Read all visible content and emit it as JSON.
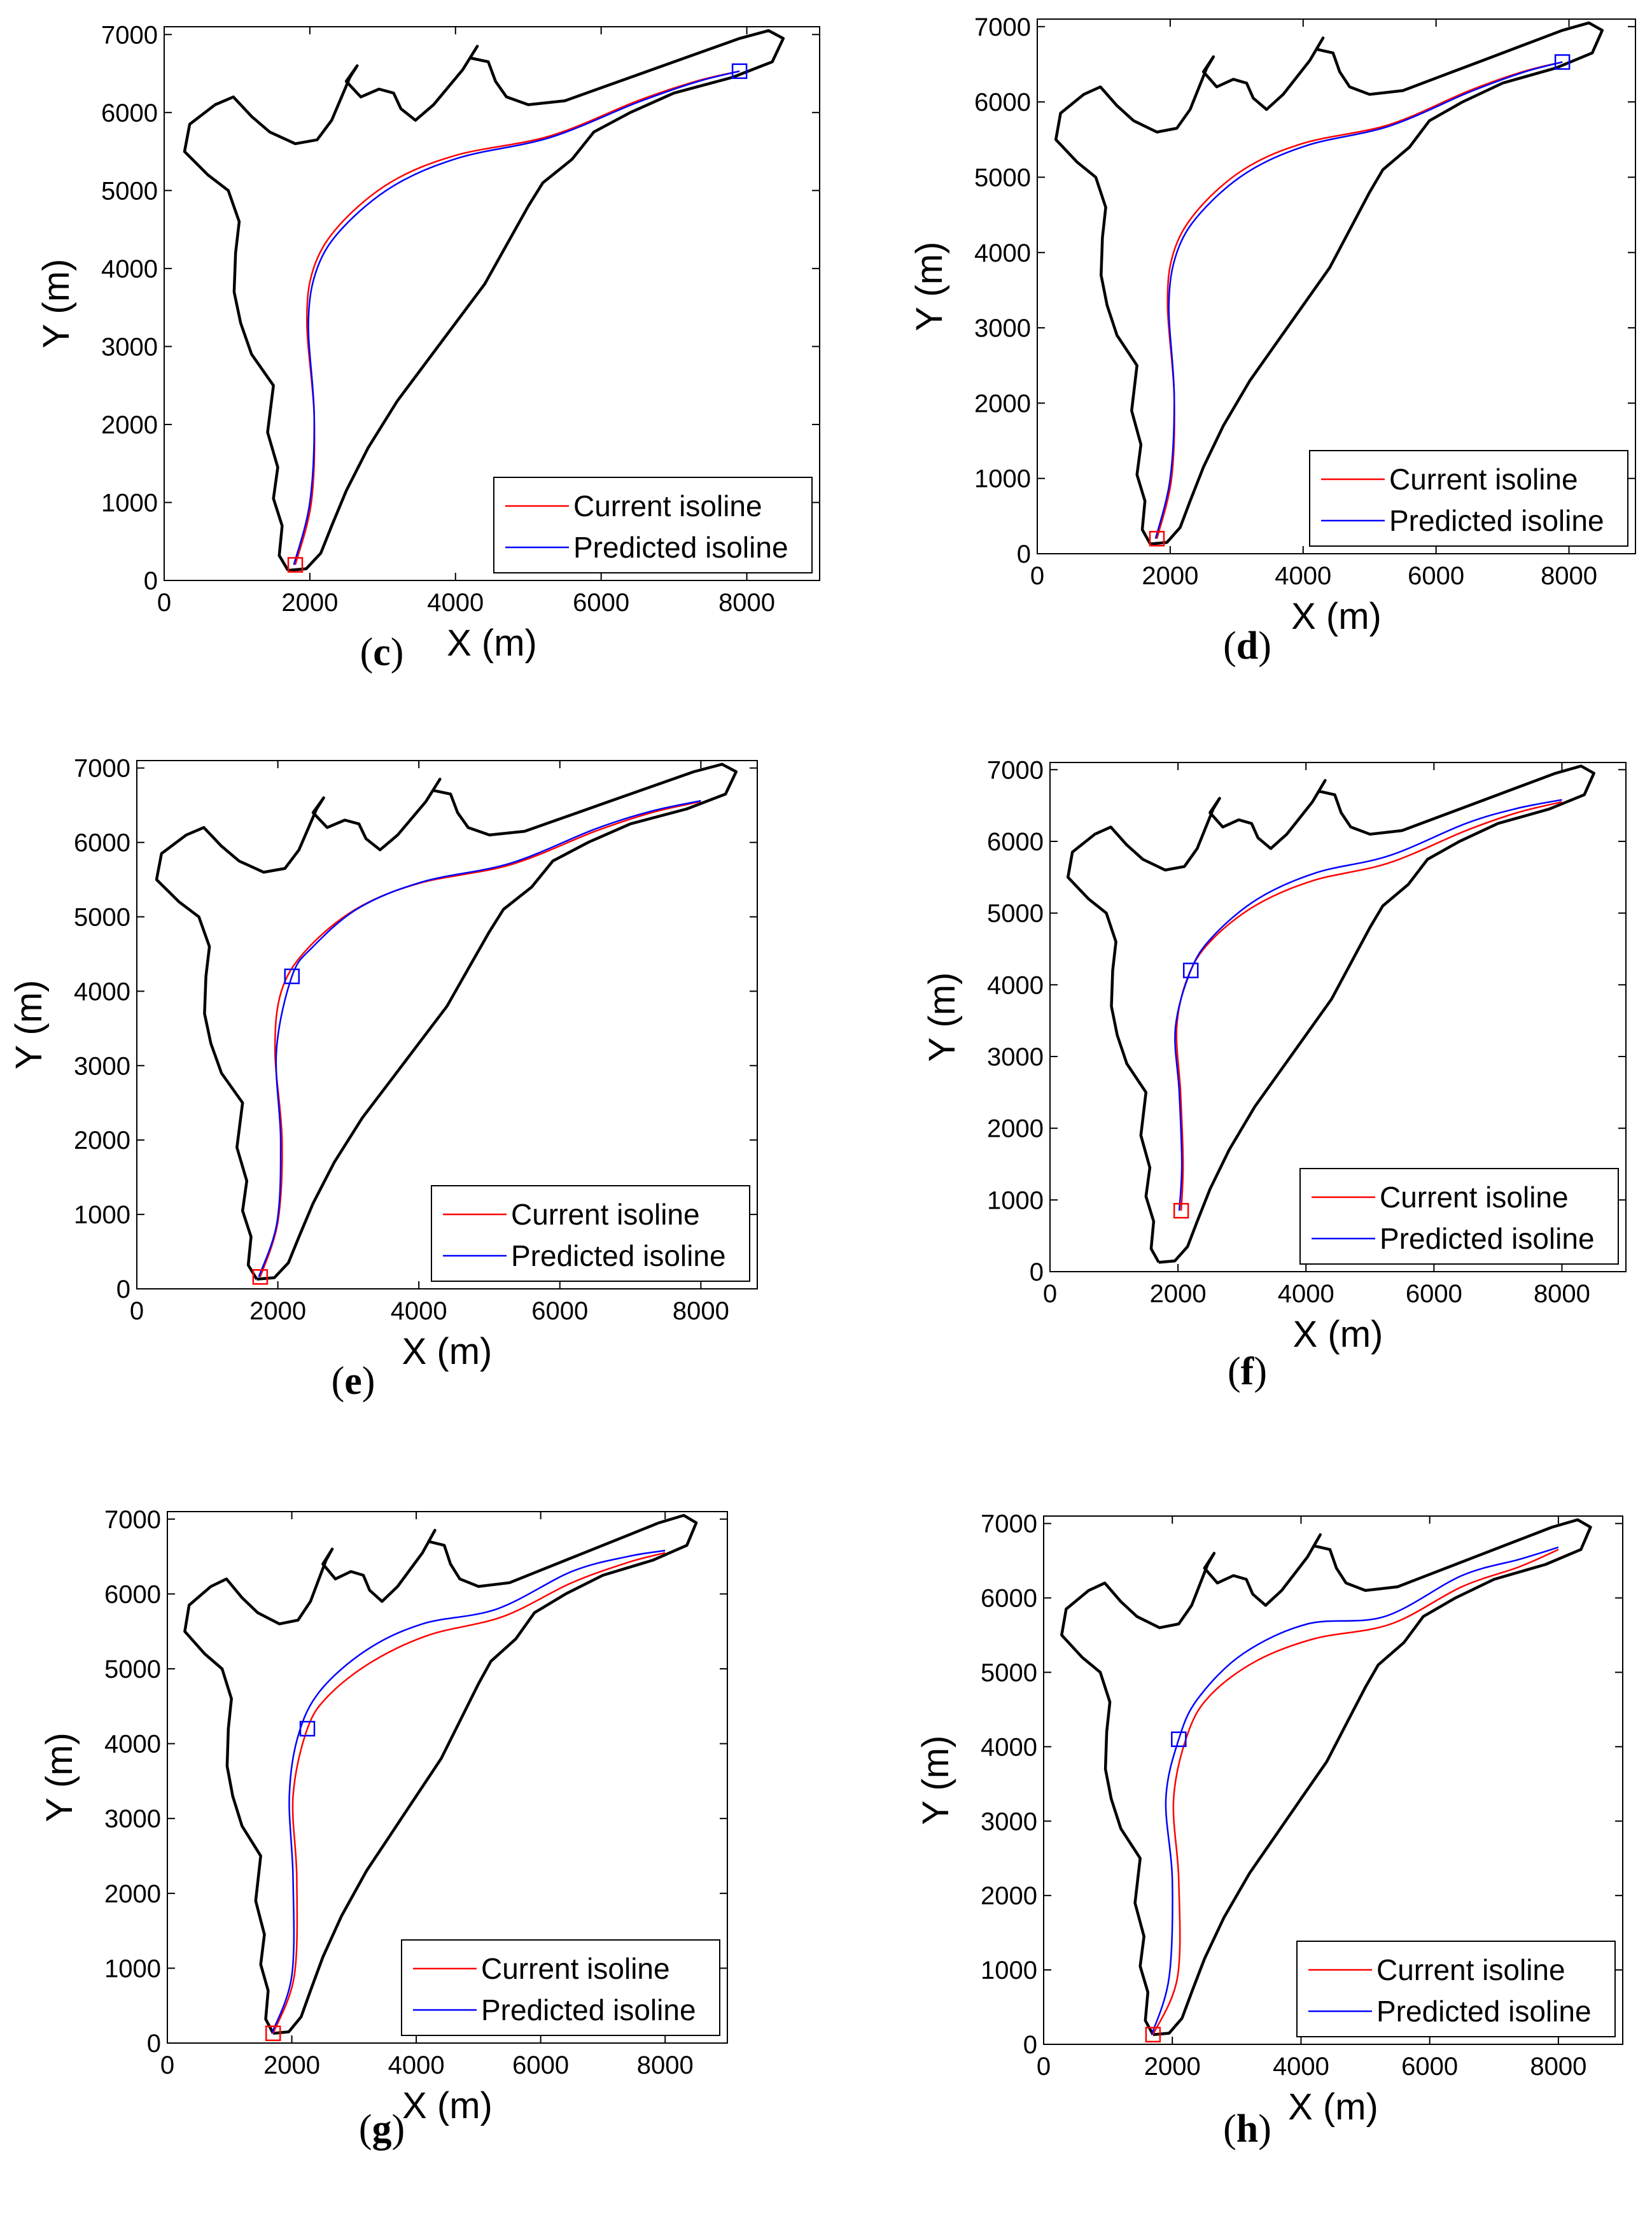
{
  "chart_data": [
    {
      "id": "c",
      "type": "line",
      "caption": "c",
      "xlabel": "X (m)",
      "ylabel": "Y (m)",
      "xlim": [
        0,
        9000
      ],
      "ylim": [
        0,
        7100
      ],
      "xticks": [
        0,
        2000,
        4000,
        6000,
        8000
      ],
      "yticks": [
        0,
        1000,
        2000,
        3000,
        4000,
        5000,
        6000,
        7000
      ],
      "legend": [
        "Current isoline",
        "Predicted isoline"
      ],
      "legend_position": "bottom-right",
      "marker_current": [
        1800,
        200
      ],
      "marker_predicted": [
        7900,
        6530
      ],
      "current_isoline": [
        [
          1800,
          200
        ],
        [
          2020,
          1000
        ],
        [
          2060,
          2100
        ],
        [
          1960,
          3300
        ],
        [
          2050,
          4000
        ],
        [
          2400,
          4550
        ],
        [
          3100,
          5100
        ],
        [
          4000,
          5450
        ],
        [
          5300,
          5700
        ],
        [
          6500,
          6150
        ],
        [
          7300,
          6400
        ],
        [
          7900,
          6530
        ]
      ],
      "predicted_isoline": [
        [
          1780,
          200
        ],
        [
          2000,
          1000
        ],
        [
          2060,
          2100
        ],
        [
          1980,
          3300
        ],
        [
          2100,
          4000
        ],
        [
          2450,
          4520
        ],
        [
          3150,
          5060
        ],
        [
          4050,
          5420
        ],
        [
          5300,
          5680
        ],
        [
          6500,
          6130
        ],
        [
          7300,
          6390
        ],
        [
          7900,
          6530
        ]
      ]
    },
    {
      "id": "d",
      "type": "line",
      "caption": "d",
      "xlabel": "X (m)",
      "ylabel": "Y (m)",
      "xlim": [
        0,
        9000
      ],
      "ylim": [
        0,
        7100
      ],
      "xticks": [
        0,
        2000,
        4000,
        6000,
        8000
      ],
      "yticks": [
        0,
        1000,
        2000,
        3000,
        4000,
        5000,
        6000,
        7000
      ],
      "legend": [
        "Current isoline",
        "Predicted isoline"
      ],
      "legend_position": "bottom-right",
      "marker_current": [
        1800,
        200
      ],
      "marker_predicted": [
        7900,
        6530
      ],
      "current_isoline": [
        [
          1800,
          200
        ],
        [
          2020,
          1000
        ],
        [
          2060,
          2100
        ],
        [
          1960,
          3300
        ],
        [
          2050,
          4000
        ],
        [
          2400,
          4550
        ],
        [
          3100,
          5100
        ],
        [
          4000,
          5450
        ],
        [
          5300,
          5700
        ],
        [
          6500,
          6150
        ],
        [
          7300,
          6400
        ],
        [
          7900,
          6530
        ]
      ],
      "predicted_isoline": [
        [
          1780,
          200
        ],
        [
          2000,
          1000
        ],
        [
          2060,
          2100
        ],
        [
          1980,
          3300
        ],
        [
          2100,
          4000
        ],
        [
          2450,
          4520
        ],
        [
          3150,
          5060
        ],
        [
          4050,
          5420
        ],
        [
          5300,
          5680
        ],
        [
          6500,
          6130
        ],
        [
          7300,
          6390
        ],
        [
          7900,
          6530
        ]
      ]
    },
    {
      "id": "e",
      "type": "line",
      "caption": "e",
      "xlabel": "X (m)",
      "ylabel": "Y (m)",
      "xlim": [
        0,
        8800
      ],
      "ylim": [
        0,
        7100
      ],
      "xticks": [
        0,
        2000,
        4000,
        6000,
        8000
      ],
      "yticks": [
        0,
        1000,
        2000,
        3000,
        4000,
        5000,
        6000,
        7000
      ],
      "legend": [
        "Current isoline",
        "Predicted isoline"
      ],
      "legend_position": "bottom-right",
      "marker_current": [
        1750,
        160
      ],
      "marker_predicted": [
        2200,
        4200
      ],
      "current_isoline": [
        [
          1750,
          160
        ],
        [
          2000,
          900
        ],
        [
          2060,
          2000
        ],
        [
          1960,
          3200
        ],
        [
          2050,
          4000
        ],
        [
          2400,
          4550
        ],
        [
          3100,
          5100
        ],
        [
          4000,
          5450
        ],
        [
          5300,
          5700
        ],
        [
          6500,
          6150
        ],
        [
          7300,
          6400
        ],
        [
          8000,
          6550
        ]
      ],
      "predicted_isoline": [
        [
          1730,
          160
        ],
        [
          1990,
          900
        ],
        [
          2040,
          2000
        ],
        [
          1980,
          3200
        ],
        [
          2200,
          4200
        ],
        [
          2500,
          4600
        ],
        [
          3150,
          5120
        ],
        [
          4050,
          5470
        ],
        [
          5300,
          5720
        ],
        [
          6500,
          6180
        ],
        [
          7300,
          6420
        ],
        [
          8000,
          6560
        ]
      ]
    },
    {
      "id": "f",
      "type": "line",
      "caption": "f",
      "xlabel": "X (m)",
      "ylabel": "Y (m)",
      "xlim": [
        0,
        9000
      ],
      "ylim": [
        0,
        7100
      ],
      "xticks": [
        0,
        2000,
        4000,
        6000,
        8000
      ],
      "yticks": [
        0,
        1000,
        2000,
        3000,
        4000,
        5000,
        6000,
        7000
      ],
      "legend": [
        "Current isoline",
        "Predicted isoline"
      ],
      "legend_position": "bottom-right",
      "marker_current": [
        2050,
        850
      ],
      "marker_predicted": [
        2200,
        4200
      ],
      "current_isoline": [
        [
          2050,
          850
        ],
        [
          2080,
          1500
        ],
        [
          2040,
          2500
        ],
        [
          1980,
          3400
        ],
        [
          2150,
          4100
        ],
        [
          2500,
          4600
        ],
        [
          3200,
          5100
        ],
        [
          4100,
          5450
        ],
        [
          5300,
          5700
        ],
        [
          6500,
          6150
        ],
        [
          7300,
          6400
        ],
        [
          8000,
          6550
        ]
      ],
      "predicted_isoline": [
        [
          2020,
          850
        ],
        [
          2060,
          1500
        ],
        [
          2020,
          2500
        ],
        [
          1960,
          3400
        ],
        [
          2200,
          4200
        ],
        [
          2550,
          4680
        ],
        [
          3250,
          5200
        ],
        [
          4150,
          5560
        ],
        [
          5300,
          5800
        ],
        [
          6500,
          6250
        ],
        [
          7300,
          6460
        ],
        [
          8000,
          6580
        ]
      ]
    },
    {
      "id": "g",
      "type": "line",
      "caption": "g",
      "xlabel": "X (m)",
      "ylabel": "Y (m)",
      "xlim": [
        0,
        9000
      ],
      "ylim": [
        0,
        7100
      ],
      "xticks": [
        0,
        2000,
        4000,
        6000,
        8000
      ],
      "yticks": [
        0,
        1000,
        2000,
        3000,
        4000,
        5000,
        6000,
        7000
      ],
      "legend": [
        "Current isoline",
        "Predicted isoline"
      ],
      "legend_position": "bottom-right",
      "marker_current": [
        1700,
        130
      ],
      "marker_predicted": [
        2250,
        4200
      ],
      "current_isoline": [
        [
          1700,
          130
        ],
        [
          2040,
          900
        ],
        [
          2080,
          2200
        ],
        [
          2020,
          3300
        ],
        [
          2250,
          4200
        ],
        [
          2600,
          4650
        ],
        [
          3300,
          5100
        ],
        [
          4200,
          5450
        ],
        [
          5400,
          5700
        ],
        [
          6500,
          6150
        ],
        [
          7400,
          6420
        ],
        [
          8000,
          6550
        ]
      ],
      "predicted_isoline": [
        [
          1680,
          130
        ],
        [
          2000,
          900
        ],
        [
          2020,
          2200
        ],
        [
          1960,
          3300
        ],
        [
          2100,
          4100
        ],
        [
          2450,
          4700
        ],
        [
          3200,
          5250
        ],
        [
          4100,
          5600
        ],
        [
          5300,
          5800
        ],
        [
          6500,
          6300
        ],
        [
          7400,
          6500
        ],
        [
          8000,
          6580
        ]
      ]
    },
    {
      "id": "h",
      "type": "line",
      "caption": "h",
      "xlabel": "X (m)",
      "ylabel": "Y (m)",
      "xlim": [
        0,
        9000
      ],
      "ylim": [
        0,
        7100
      ],
      "xticks": [
        0,
        2000,
        4000,
        6000,
        8000
      ],
      "yticks": [
        0,
        1000,
        2000,
        3000,
        4000,
        5000,
        6000,
        7000
      ],
      "legend": [
        "Current isoline",
        "Predicted isoline"
      ],
      "legend_position": "bottom-right",
      "marker_current": [
        1700,
        130
      ],
      "marker_predicted": [
        2100,
        4100
      ],
      "current_isoline": [
        [
          1700,
          130
        ],
        [
          2080,
          900
        ],
        [
          2100,
          2200
        ],
        [
          2020,
          3300
        ],
        [
          2250,
          4200
        ],
        [
          2600,
          4700
        ],
        [
          3300,
          5150
        ],
        [
          4200,
          5450
        ],
        [
          5400,
          5650
        ],
        [
          6500,
          6150
        ],
        [
          7400,
          6420
        ],
        [
          8000,
          6650
        ]
      ],
      "predicted_isoline": [
        [
          1680,
          130
        ],
        [
          1950,
          900
        ],
        [
          2000,
          2200
        ],
        [
          1900,
          3300
        ],
        [
          2100,
          4100
        ],
        [
          2400,
          4650
        ],
        [
          3100,
          5250
        ],
        [
          4100,
          5650
        ],
        [
          5300,
          5750
        ],
        [
          6500,
          6300
        ],
        [
          7400,
          6520
        ],
        [
          8000,
          6680
        ]
      ]
    }
  ],
  "boundary": [
    [
      1700,
      130
    ],
    [
      1580,
      320
    ],
    [
      1620,
      700
    ],
    [
      1500,
      1050
    ],
    [
      1560,
      1450
    ],
    [
      1420,
      1900
    ],
    [
      1500,
      2500
    ],
    [
      1200,
      2900
    ],
    [
      1050,
      3300
    ],
    [
      960,
      3700
    ],
    [
      980,
      4200
    ],
    [
      1030,
      4600
    ],
    [
      880,
      5000
    ],
    [
      600,
      5200
    ],
    [
      280,
      5500
    ],
    [
      350,
      5850
    ],
    [
      700,
      6100
    ],
    [
      950,
      6200
    ],
    [
      1200,
      5950
    ],
    [
      1450,
      5750
    ],
    [
      1800,
      5600
    ],
    [
      2100,
      5650
    ],
    [
      2300,
      5900
    ],
    [
      2550,
      6450
    ],
    [
      2650,
      6600
    ],
    [
      2500,
      6400
    ],
    [
      2700,
      6200
    ],
    [
      2950,
      6300
    ],
    [
      3150,
      6250
    ],
    [
      3250,
      6050
    ],
    [
      3450,
      5900
    ],
    [
      3700,
      6100
    ],
    [
      4100,
      6550
    ],
    [
      4300,
      6850
    ],
    [
      4200,
      6700
    ],
    [
      4450,
      6650
    ],
    [
      4550,
      6400
    ],
    [
      4700,
      6200
    ],
    [
      5000,
      6100
    ],
    [
      5500,
      6150
    ],
    [
      6100,
      6350
    ],
    [
      6700,
      6550
    ],
    [
      7300,
      6750
    ],
    [
      7900,
      6950
    ],
    [
      8300,
      7050
    ],
    [
      8500,
      6950
    ],
    [
      8350,
      6650
    ],
    [
      7800,
      6450
    ],
    [
      7000,
      6250
    ],
    [
      6400,
      6000
    ],
    [
      5900,
      5750
    ],
    [
      5600,
      5400
    ],
    [
      5200,
      5100
    ],
    [
      5000,
      4800
    ],
    [
      4700,
      4300
    ],
    [
      4400,
      3800
    ],
    [
      4000,
      3300
    ],
    [
      3600,
      2800
    ],
    [
      3200,
      2300
    ],
    [
      2800,
      1700
    ],
    [
      2500,
      1150
    ],
    [
      2300,
      700
    ],
    [
      2150,
      350
    ],
    [
      1950,
      150
    ],
    [
      1700,
      130
    ]
  ],
  "captions": {
    "c": "c",
    "d": "d",
    "e": "e",
    "f": "f",
    "g": "g",
    "h": "h"
  },
  "colors": {
    "current": "#ff0000",
    "predicted": "#0000ff",
    "boundary": "#000000"
  }
}
